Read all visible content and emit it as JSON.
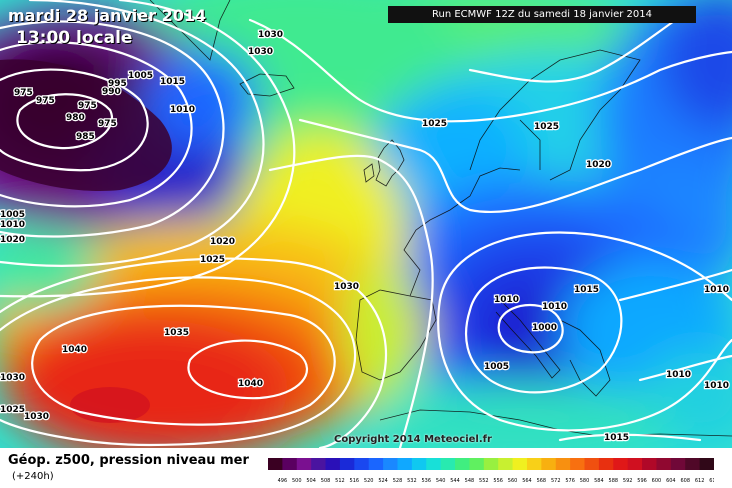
{
  "header": {
    "date": "mardi 28 janvier 2014",
    "time": "13:00 locale",
    "run": "Run ECMWF 12Z du samedi 18 janvier 2014"
  },
  "footer": {
    "title": "Géop. z500, pression niveau mer",
    "subtitle": "(+240h)"
  },
  "copyright": "Copyright 2014 Meteociel.fr",
  "isobar_labels": [
    "1030",
    "1030",
    "975",
    "975",
    "1005",
    "1015",
    "995",
    "990",
    "1010",
    "975",
    "980",
    "975",
    "985",
    "1025",
    "1025",
    "1020",
    "1005",
    "1010",
    "1020",
    "1025",
    "1020",
    "1010",
    "1015",
    "1030",
    "1010",
    "1010",
    "1035",
    "1000",
    "1040",
    "1040",
    "1005",
    "1030",
    "1030",
    "1025",
    "1010",
    "1015",
    "1010"
  ],
  "scale": {
    "labels": [
      "496",
      "500",
      "504",
      "508",
      "512",
      "516",
      "520",
      "524",
      "528",
      "532",
      "536",
      "540",
      "544",
      "548",
      "552",
      "556",
      "560",
      "564",
      "568",
      "572",
      "576",
      "580",
      "584",
      "588",
      "592",
      "596",
      "600",
      "604",
      "608",
      "612",
      "616"
    ],
    "colors": [
      "#3a0022",
      "#5a0060",
      "#7a1090",
      "#4a14a0",
      "#2a10b8",
      "#1a2ad8",
      "#1a48f0",
      "#1a66ff",
      "#1a88ff",
      "#10a8ff",
      "#10c8f0",
      "#18e0d8",
      "#28eab0",
      "#40ee80",
      "#60f060",
      "#98f040",
      "#c8f030",
      "#f0f020",
      "#f8d018",
      "#f8b010",
      "#f89010",
      "#f87010",
      "#f05010",
      "#e83010",
      "#e01818",
      "#d01020",
      "#b00828",
      "#900830",
      "#700838",
      "#500828",
      "#300818"
    ]
  }
}
